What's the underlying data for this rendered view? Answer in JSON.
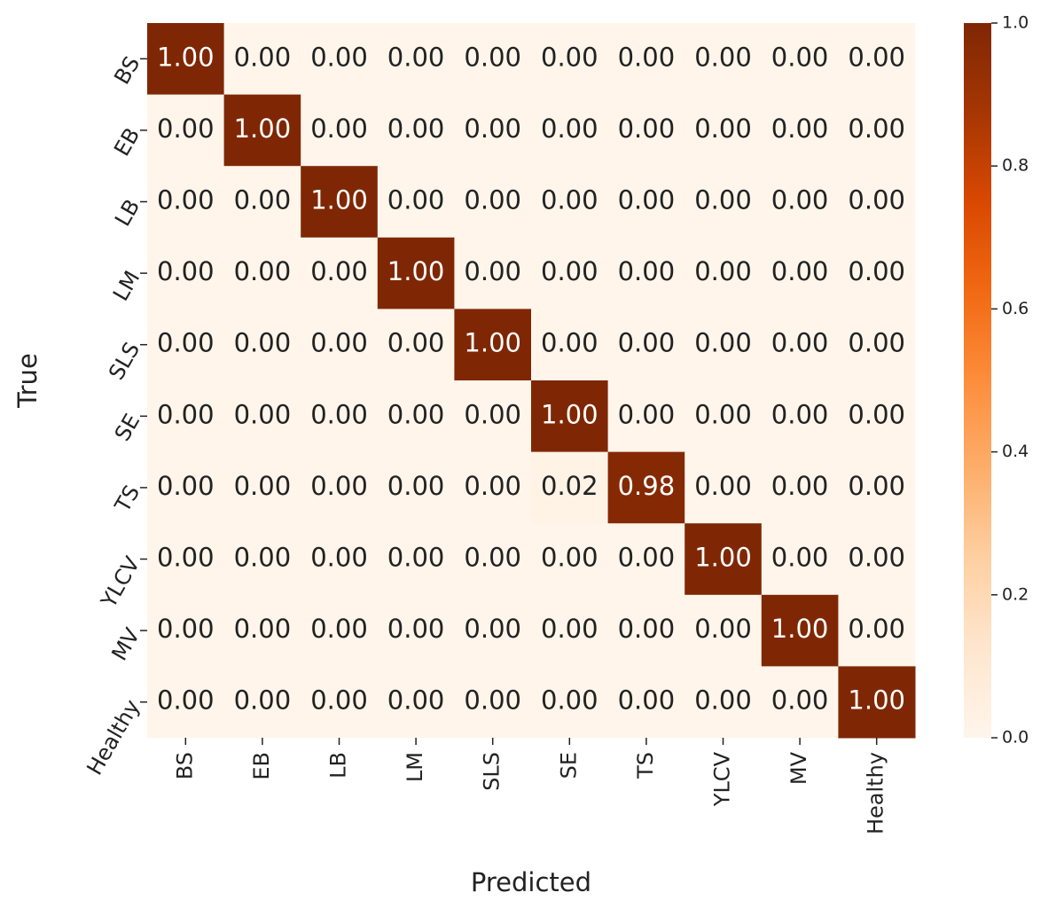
{
  "chart_data": {
    "type": "heatmap",
    "x_label": "Predicted",
    "y_label": "True",
    "x_categories": [
      "BS",
      "EB",
      "LB",
      "LM",
      "SLS",
      "SE",
      "TS",
      "YLCV",
      "MV",
      "Healthy"
    ],
    "y_categories": [
      "BS",
      "EB",
      "LB",
      "LM",
      "SLS",
      "SE",
      "TS",
      "YLCV",
      "MV",
      "Healthy"
    ],
    "values": [
      [
        1,
        0,
        0,
        0,
        0,
        0,
        0,
        0,
        0,
        0
      ],
      [
        0,
        1,
        0,
        0,
        0,
        0,
        0,
        0,
        0,
        0
      ],
      [
        0,
        0,
        1,
        0,
        0,
        0,
        0,
        0,
        0,
        0
      ],
      [
        0,
        0,
        0,
        1,
        0,
        0,
        0,
        0,
        0,
        0
      ],
      [
        0,
        0,
        0,
        0,
        1,
        0,
        0,
        0,
        0,
        0
      ],
      [
        0,
        0,
        0,
        0,
        0,
        1,
        0,
        0,
        0,
        0
      ],
      [
        0,
        0,
        0,
        0,
        0,
        0.02,
        0.98,
        0,
        0,
        0
      ],
      [
        0,
        0,
        0,
        0,
        0,
        0,
        0,
        1,
        0,
        0
      ],
      [
        0,
        0,
        0,
        0,
        0,
        0,
        0,
        0,
        1,
        0
      ],
      [
        0,
        0,
        0,
        0,
        0,
        0,
        0,
        0,
        0,
        1
      ]
    ],
    "value_labels": [
      [
        "1.00",
        "0.00",
        "0.00",
        "0.00",
        "0.00",
        "0.00",
        "0.00",
        "0.00",
        "0.00",
        "0.00"
      ],
      [
        "0.00",
        "1.00",
        "0.00",
        "0.00",
        "0.00",
        "0.00",
        "0.00",
        "0.00",
        "0.00",
        "0.00"
      ],
      [
        "0.00",
        "0.00",
        "1.00",
        "0.00",
        "0.00",
        "0.00",
        "0.00",
        "0.00",
        "0.00",
        "0.00"
      ],
      [
        "0.00",
        "0.00",
        "0.00",
        "1.00",
        "0.00",
        "0.00",
        "0.00",
        "0.00",
        "0.00",
        "0.00"
      ],
      [
        "0.00",
        "0.00",
        "0.00",
        "0.00",
        "1.00",
        "0.00",
        "0.00",
        "0.00",
        "0.00",
        "0.00"
      ],
      [
        "0.00",
        "0.00",
        "0.00",
        "0.00",
        "0.00",
        "1.00",
        "0.00",
        "0.00",
        "0.00",
        "0.00"
      ],
      [
        "0.00",
        "0.00",
        "0.00",
        "0.00",
        "0.00",
        "0.02",
        "0.98",
        "0.00",
        "0.00",
        "0.00"
      ],
      [
        "0.00",
        "0.00",
        "0.00",
        "0.00",
        "0.00",
        "0.00",
        "0.00",
        "1.00",
        "0.00",
        "0.00"
      ],
      [
        "0.00",
        "0.00",
        "0.00",
        "0.00",
        "0.00",
        "0.00",
        "0.00",
        "0.00",
        "1.00",
        "0.00"
      ],
      [
        "0.00",
        "0.00",
        "0.00",
        "0.00",
        "0.00",
        "0.00",
        "0.00",
        "0.00",
        "0.00",
        "1.00"
      ]
    ],
    "colormap": "Oranges",
    "clim": [
      0,
      1
    ],
    "cticks": [
      {
        "value": 0,
        "label": "0.0"
      },
      {
        "value": 0.2,
        "label": "0.2"
      },
      {
        "value": 0.4,
        "label": "0.4"
      },
      {
        "value": 0.6,
        "label": "0.6"
      },
      {
        "value": 0.8,
        "label": "0.8"
      },
      {
        "value": 1,
        "label": "1.0"
      }
    ]
  }
}
